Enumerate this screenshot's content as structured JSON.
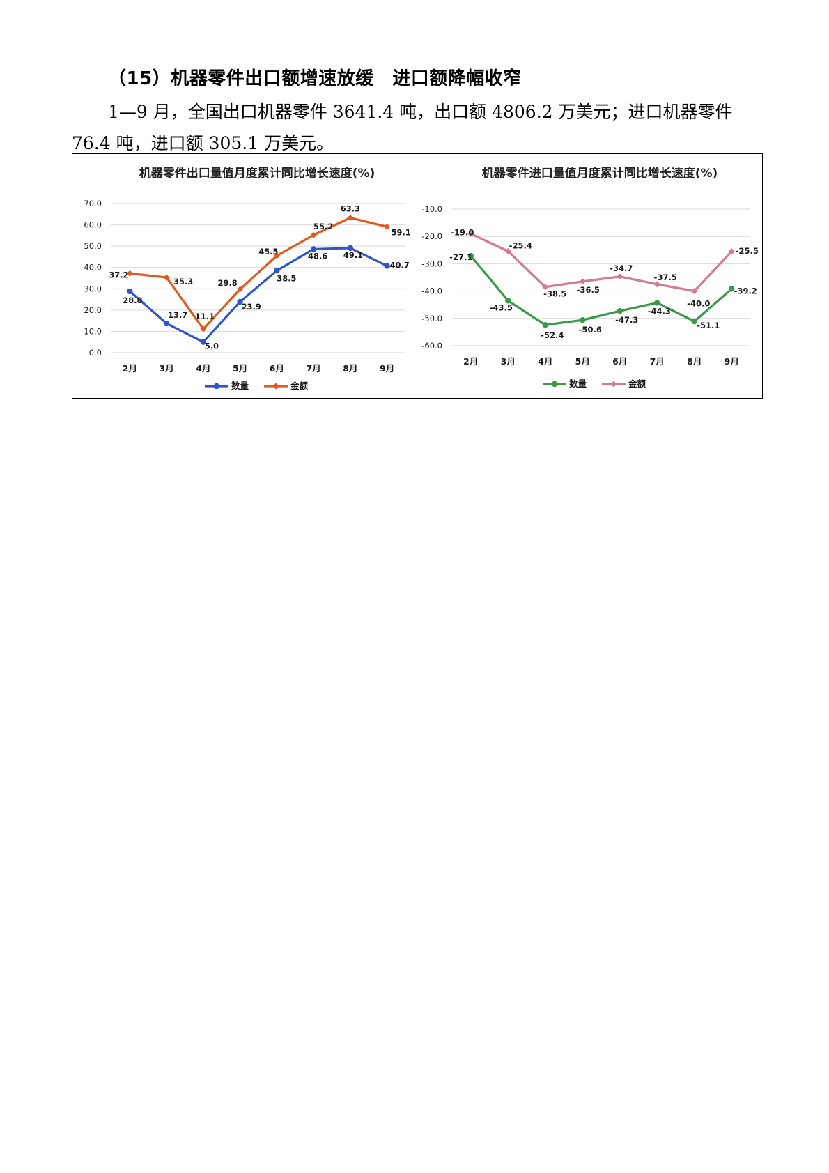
{
  "heading": {
    "number": "（15）",
    "text": "机器零件出口额增速放缓　进口额降幅收窄"
  },
  "paragraph": "1—9 月，全国出口机器零件 3641.4 吨，出口额 4806.2 万美元；进口机器零件 76.4 吨，进口额 305.1 万美元。",
  "chart_data": [
    {
      "type": "line",
      "title": "机器零件出口量值月度累计同比增长速度(%)",
      "categories": [
        "2月",
        "3月",
        "4月",
        "5月",
        "6月",
        "7月",
        "8月",
        "9月"
      ],
      "ylim": [
        0,
        70
      ],
      "yticks": [
        "70.0",
        "60.0",
        "50.0",
        "40.0",
        "30.0",
        "20.0",
        "10.0",
        "0.0"
      ],
      "grid": true,
      "legend": "bottom",
      "series": [
        {
          "name": "数量",
          "color": "#2f55c8",
          "marker": "circle",
          "values": [
            28.8,
            13.7,
            5.0,
            23.9,
            38.5,
            48.6,
            49.1,
            40.7
          ],
          "labels": [
            "28.8",
            "13.7",
            "5.0",
            "23.9",
            "38.5",
            "48.6",
            "49.1",
            "40.7"
          ]
        },
        {
          "name": "金额",
          "color": "#e05a1e",
          "marker": "diamond",
          "values": [
            37.2,
            35.3,
            11.1,
            29.8,
            45.5,
            55.2,
            63.3,
            59.1
          ],
          "labels": [
            "37.2",
            "35.3",
            "11.1",
            "29.8",
            "45.5",
            "55.2",
            "63.3",
            "59.1"
          ]
        }
      ]
    },
    {
      "type": "line",
      "title": "机器零件进口量值月度累计同比增长速度(%)",
      "categories": [
        "2月",
        "3月",
        "4月",
        "5月",
        "6月",
        "7月",
        "8月",
        "9月"
      ],
      "ylim": [
        -60,
        -10
      ],
      "yticks": [
        "-10.0",
        "-20.0",
        "-30.0",
        "-40.0",
        "-50.0",
        "-60.0"
      ],
      "grid": true,
      "legend": "bottom",
      "series": [
        {
          "name": "数量",
          "color": "#3a9a4a",
          "marker": "circle",
          "values": [
            -27.1,
            -43.5,
            -52.4,
            -50.6,
            -47.3,
            -44.3,
            -51.1,
            -39.2
          ],
          "labels": [
            "-27.1",
            "-43.5",
            "-52.4",
            "-50.6",
            "-47.3",
            "-44.3",
            "-51.1",
            "-39.2"
          ]
        },
        {
          "name": "金额",
          "color": "#d4789a",
          "marker": "diamond",
          "values": [
            -19.0,
            -25.4,
            -38.5,
            -36.5,
            -34.7,
            -37.5,
            -40.0,
            -25.5
          ],
          "labels": [
            "-19.0",
            "-25.4",
            "-38.5",
            "-36.5",
            "-34.7",
            "-37.5",
            "-40.0",
            "-25.5"
          ]
        }
      ]
    }
  ]
}
